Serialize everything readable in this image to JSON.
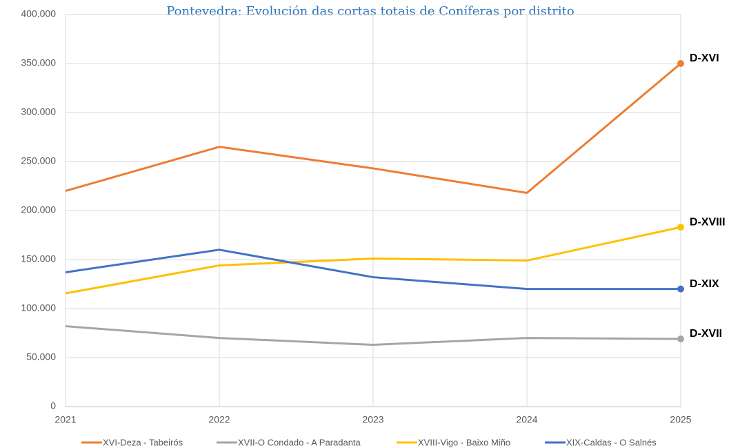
{
  "chart_data": {
    "type": "line",
    "title": "Pontevedra: Evolución das cortas totais de Coníferas por distrito",
    "categories": [
      "2021",
      "2022",
      "2023",
      "2024",
      "2025"
    ],
    "series": [
      {
        "name": "XVI-Deza - Tabeirós",
        "color": "#ED7D31",
        "values": [
          220000,
          265000,
          243000,
          218000,
          350000
        ],
        "end_label": "D-XVI"
      },
      {
        "name": "XVII-O Condado - A Paradanta",
        "color": "#A5A5A5",
        "values": [
          82000,
          70000,
          63000,
          70000,
          69000
        ],
        "end_label": "D-XVII"
      },
      {
        "name": "XVIII-Vigo - Baixo Miño",
        "color": "#FFC000",
        "values": [
          115500,
          144000,
          151000,
          149000,
          183000
        ],
        "end_label": "D-XVIII"
      },
      {
        "name": "XIX-Caldas - O Salnés",
        "color": "#4472C4",
        "values": [
          137000,
          160000,
          132000,
          120000,
          120000
        ],
        "end_label": "D-XIX"
      }
    ],
    "ylim": [
      0,
      400000
    ],
    "yticks": [
      0,
      {
        "value": 50000,
        "label": "50.000"
      },
      {
        "value": 100000,
        "label": "100.000"
      },
      {
        "value": 150000,
        "label": "150.000"
      },
      {
        "value": 200000,
        "label": "200.000"
      },
      {
        "value": 250000,
        "label": "250.000"
      },
      {
        "value": 300000,
        "label": "300.000"
      },
      {
        "value": 350000,
        "label": "350.000"
      },
      {
        "value": 400000,
        "label": "400.000"
      }
    ],
    "grid": true
  }
}
